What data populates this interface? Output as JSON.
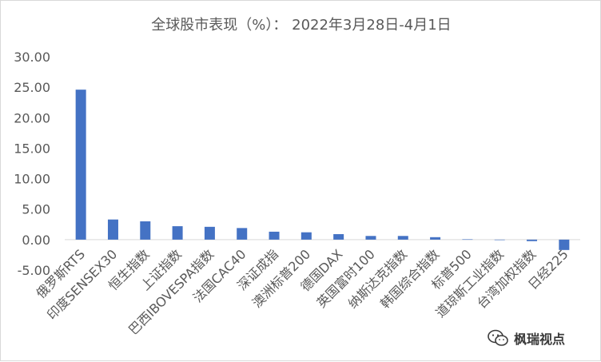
{
  "chart_data": {
    "type": "bar",
    "title": "全球股市表现（%）： 2022年3月28日-4月1日",
    "xlabel": "",
    "ylabel": "",
    "ylim": [
      -5,
      30
    ],
    "yticks": [
      "30.00",
      "25.00",
      "20.00",
      "15.00",
      "10.00",
      "5.00",
      "0.00",
      "-5.00"
    ],
    "grid": false,
    "legend": "none",
    "bar_color": "#4472c4",
    "categories": [
      "俄罗斯RTS",
      "印度SENSEX30",
      "恒生指数",
      "上证指数",
      "巴西IBOVESPA指数",
      "法国CAC40",
      "深证成指",
      "澳洲标普200",
      "德国DAX",
      "英国富时100",
      "纳斯达克指数",
      "韩国综合指数",
      "标普500",
      "道琼斯工业指数",
      "台湾加权指数",
      "日经225"
    ],
    "values": [
      24.6,
      3.3,
      3.0,
      2.2,
      2.1,
      1.9,
      1.3,
      1.2,
      0.9,
      0.6,
      0.6,
      0.4,
      0.05,
      -0.05,
      -0.25,
      -1.7
    ]
  },
  "watermark": {
    "text": "枫瑞视点",
    "icon": "wechat-icon"
  }
}
